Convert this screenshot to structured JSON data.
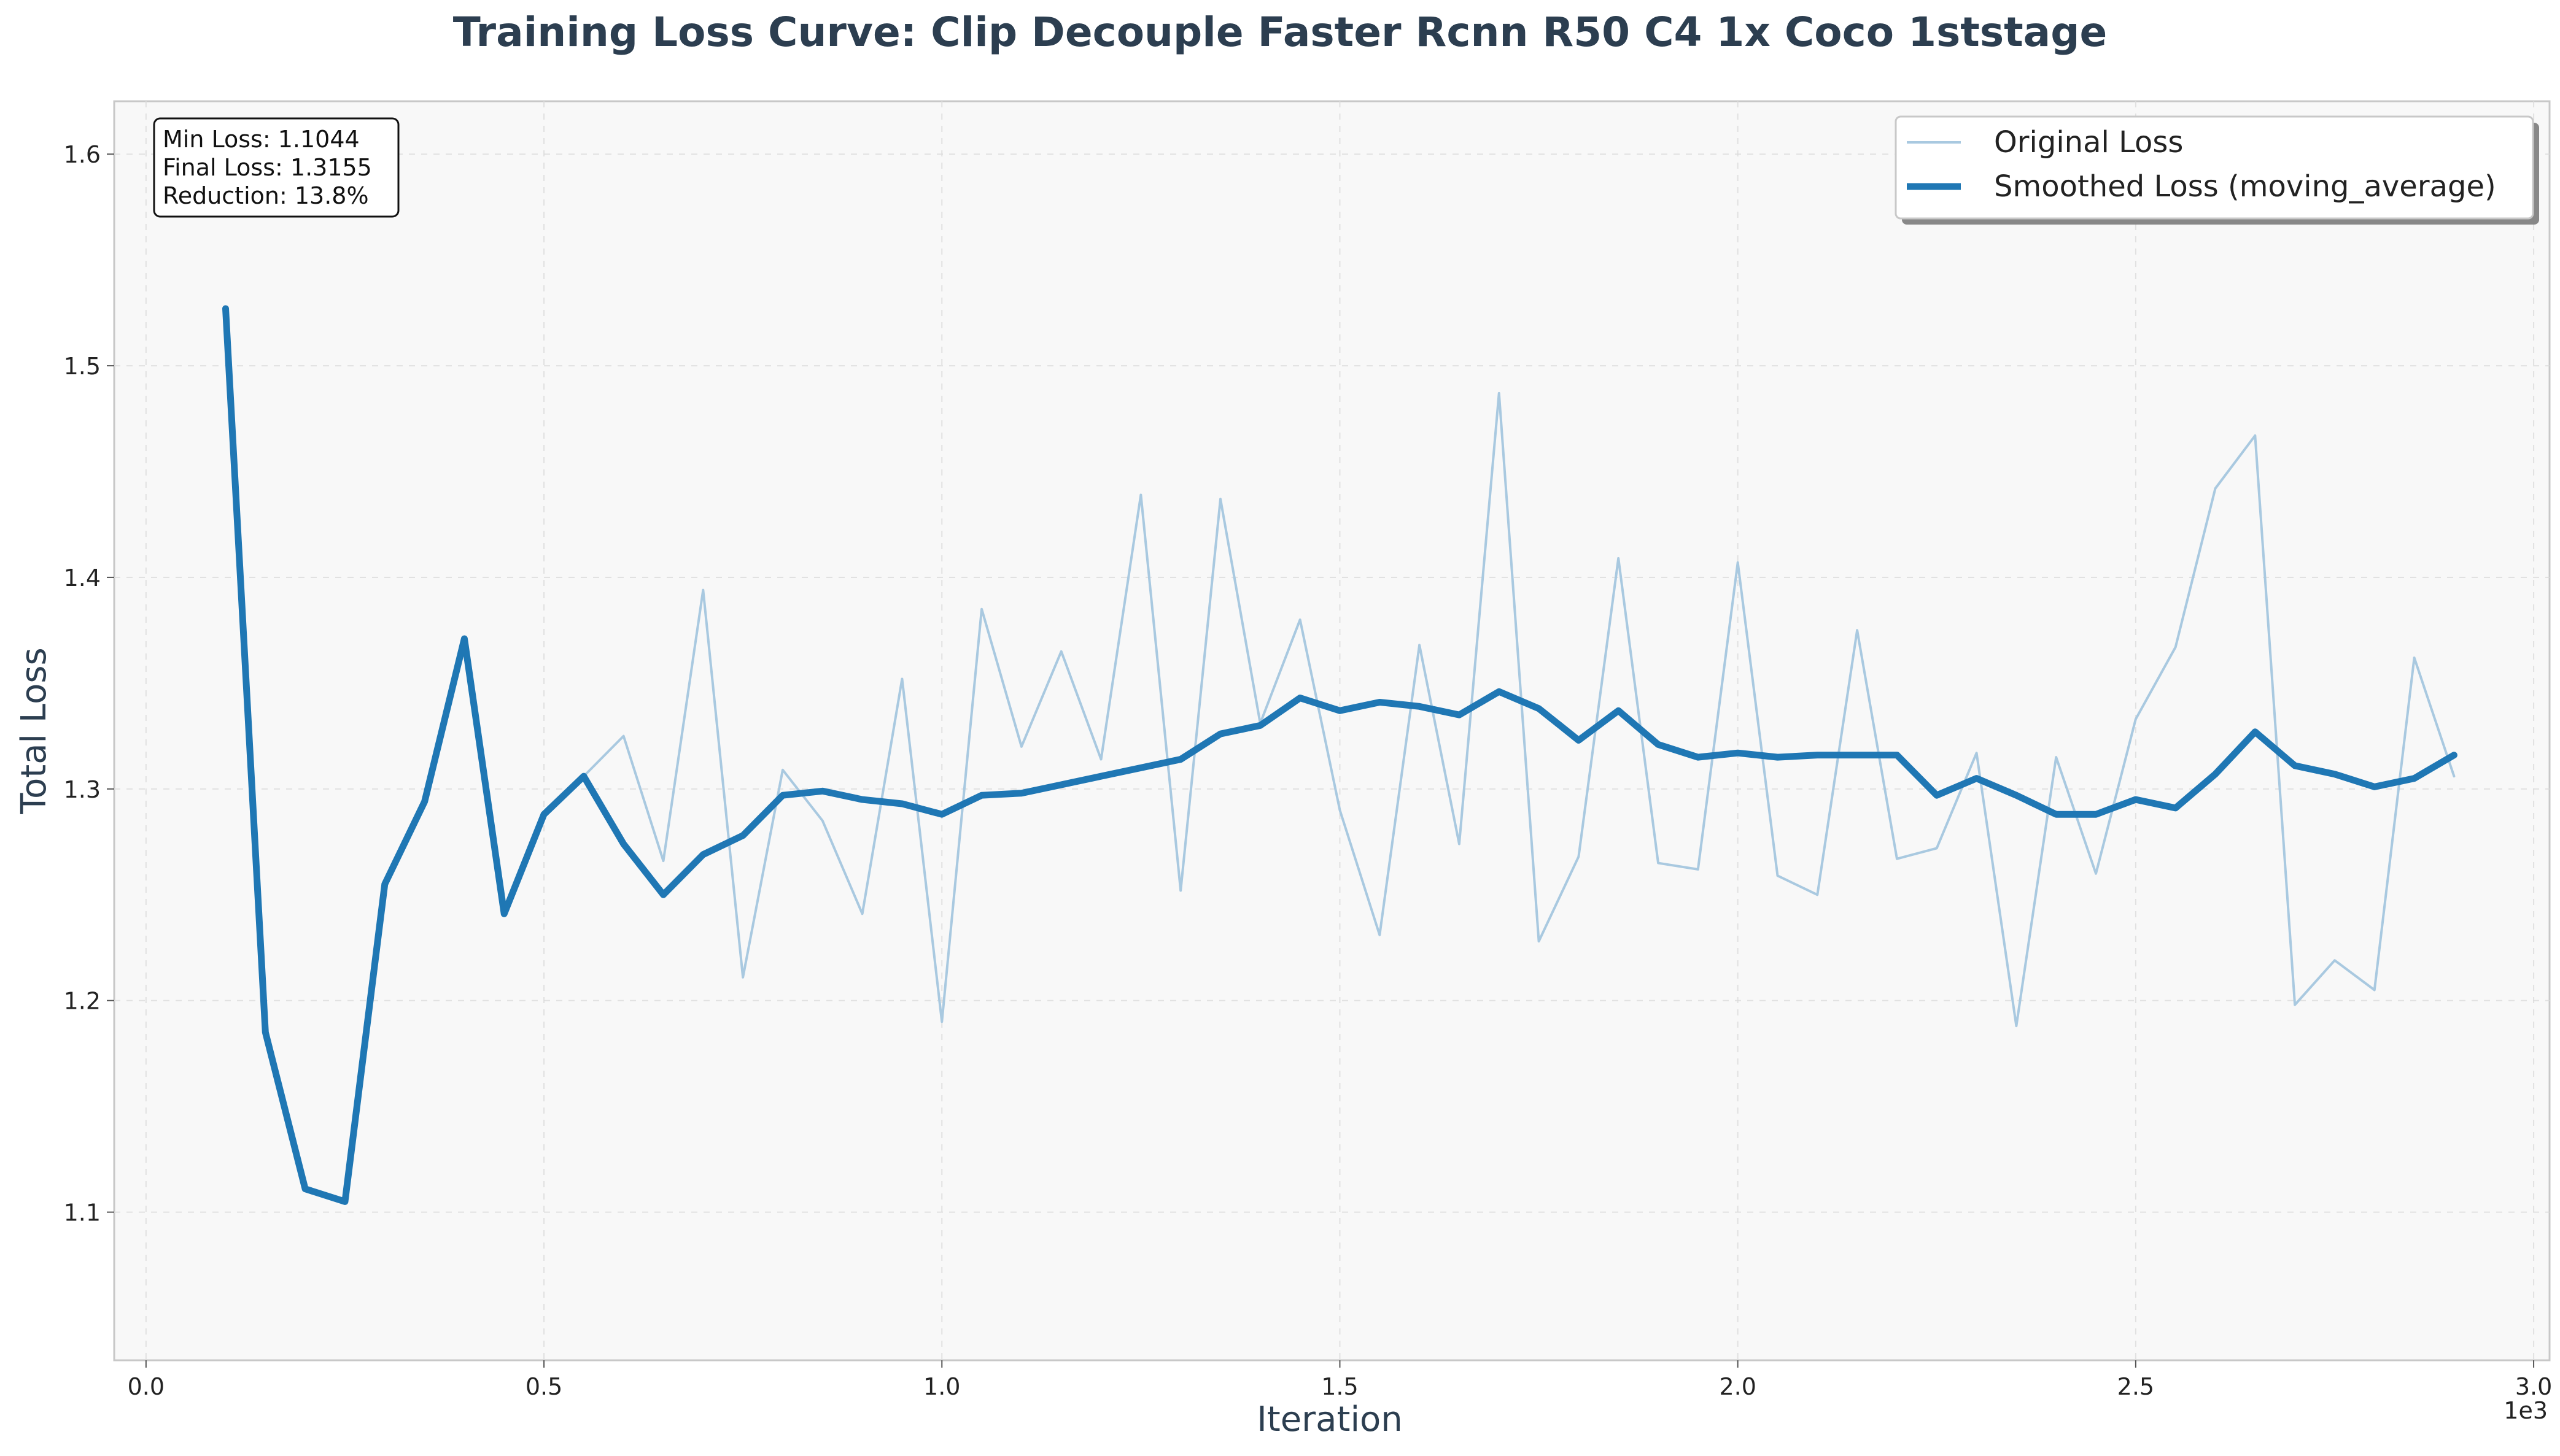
{
  "chart_data": {
    "type": "line",
    "title": "Training Loss Curve: Clip Decouple Faster Rcnn R50 C4 1x Coco 1ststage",
    "xlabel": "Iteration",
    "ylabel": "Total Loss",
    "x_offset_text": "1e3",
    "xlim": [
      -0.04,
      3.02
    ],
    "ylim": [
      1.03,
      1.625
    ],
    "x_ticks": [
      0.0,
      0.5,
      1.0,
      1.5,
      2.0,
      2.5,
      3.0
    ],
    "x_tick_labels": [
      "0.0",
      "0.5",
      "1.0",
      "1.5",
      "2.0",
      "2.5",
      "3.0"
    ],
    "y_ticks": [
      1.1,
      1.2,
      1.3,
      1.4,
      1.5,
      1.6
    ],
    "y_tick_labels": [
      "1.1",
      "1.2",
      "1.3",
      "1.4",
      "1.5",
      "1.6"
    ],
    "grid": true,
    "legend_position": "top-right",
    "x": [
      0.1,
      0.15,
      0.2,
      0.25,
      0.3,
      0.35,
      0.4,
      0.45,
      0.5,
      0.55,
      0.6,
      0.65,
      0.7,
      0.75,
      0.8,
      0.85,
      0.9,
      0.95,
      1.0,
      1.05,
      1.1,
      1.15,
      1.2,
      1.25,
      1.3,
      1.35,
      1.4,
      1.45,
      1.5,
      1.55,
      1.6,
      1.65,
      1.7,
      1.75,
      1.8,
      1.85,
      1.9,
      1.95,
      2.0,
      2.05,
      2.1,
      2.15,
      2.2,
      2.25,
      2.3,
      2.35,
      2.4,
      2.45,
      2.5,
      2.55,
      2.6,
      2.65,
      2.7,
      2.75,
      2.8,
      2.85,
      2.9
    ],
    "series": [
      {
        "name": "Original Loss",
        "color": "#a9c9e0",
        "values": [
          1.527,
          1.185,
          1.111,
          1.105,
          1.255,
          1.294,
          1.371,
          1.241,
          1.288,
          1.306,
          1.325,
          1.266,
          1.394,
          1.211,
          1.309,
          1.285,
          1.241,
          1.352,
          1.19,
          1.385,
          1.32,
          1.365,
          1.314,
          1.439,
          1.252,
          1.437,
          1.331,
          1.38,
          1.29,
          1.231,
          1.368,
          1.274,
          1.487,
          1.228,
          1.268,
          1.409,
          1.265,
          1.262,
          1.407,
          1.259,
          1.25,
          1.375,
          1.267,
          1.272,
          1.317,
          1.188,
          1.315,
          1.26,
          1.333,
          1.367,
          1.442,
          1.467,
          1.198,
          1.219,
          1.205,
          1.362,
          1.306
        ]
      },
      {
        "name": "Smoothed Loss (moving_average)",
        "color": "#1f77b4",
        "values": [
          1.527,
          1.185,
          1.111,
          1.105,
          1.255,
          1.294,
          1.371,
          1.241,
          1.288,
          1.306,
          1.274,
          1.25,
          1.269,
          1.278,
          1.297,
          1.299,
          1.295,
          1.293,
          1.288,
          1.297,
          1.298,
          1.302,
          1.306,
          1.31,
          1.314,
          1.326,
          1.33,
          1.343,
          1.337,
          1.341,
          1.339,
          1.335,
          1.346,
          1.338,
          1.323,
          1.337,
          1.321,
          1.315,
          1.317,
          1.315,
          1.316,
          1.316,
          1.316,
          1.297,
          1.305,
          1.297,
          1.288,
          1.288,
          1.295,
          1.291,
          1.307,
          1.327,
          1.311,
          1.307,
          1.301,
          1.305,
          1.316
        ]
      }
    ],
    "stats": {
      "lines": [
        "Min Loss: 1.1044",
        "Final Loss: 1.3155",
        "Reduction: 13.8%"
      ]
    }
  }
}
